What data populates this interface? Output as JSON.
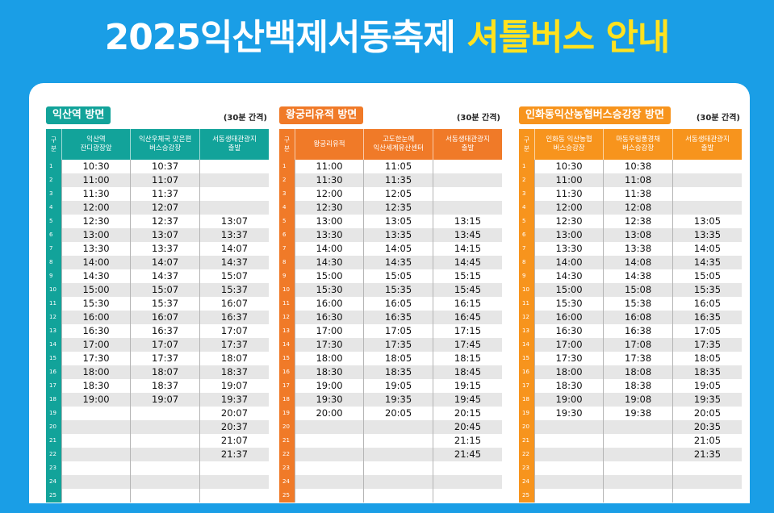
{
  "title": {
    "main": "2025익산백제서동축제 ",
    "highlight": "셔틀버스 안내"
  },
  "colors": {
    "background": "#1a9ee6",
    "highlight": "#ffe21f"
  },
  "sections": [
    {
      "name": "익산역 방면",
      "interval": "(30분 간격)",
      "color": "#12a39a",
      "headers": [
        "구\n분",
        "익산역\n잔디광장앞",
        "익산우체국 맞은편\n버스승강장",
        "서동생태관광지\n출발"
      ],
      "rows": [
        [
          "1",
          "10:30",
          "10:37",
          ""
        ],
        [
          "2",
          "11:00",
          "11:07",
          ""
        ],
        [
          "3",
          "11:30",
          "11:37",
          ""
        ],
        [
          "4",
          "12:00",
          "12:07",
          ""
        ],
        [
          "5",
          "12:30",
          "12:37",
          "13:07"
        ],
        [
          "6",
          "13:00",
          "13:07",
          "13:37"
        ],
        [
          "7",
          "13:30",
          "13:37",
          "14:07"
        ],
        [
          "8",
          "14:00",
          "14:07",
          "14:37"
        ],
        [
          "9",
          "14:30",
          "14:37",
          "15:07"
        ],
        [
          "10",
          "15:00",
          "15:07",
          "15:37"
        ],
        [
          "11",
          "15:30",
          "15:37",
          "16:07"
        ],
        [
          "12",
          "16:00",
          "16:07",
          "16:37"
        ],
        [
          "13",
          "16:30",
          "16:37",
          "17:07"
        ],
        [
          "14",
          "17:00",
          "17:07",
          "17:37"
        ],
        [
          "15",
          "17:30",
          "17:37",
          "18:07"
        ],
        [
          "16",
          "18:00",
          "18:07",
          "18:37"
        ],
        [
          "17",
          "18:30",
          "18:37",
          "19:07"
        ],
        [
          "18",
          "19:00",
          "19:07",
          "19:37"
        ],
        [
          "19",
          "",
          "",
          "20:07"
        ],
        [
          "20",
          "",
          "",
          "20:37"
        ],
        [
          "21",
          "",
          "",
          "21:07"
        ],
        [
          "22",
          "",
          "",
          "21:37"
        ],
        [
          "23",
          "",
          "",
          ""
        ],
        [
          "24",
          "",
          "",
          ""
        ],
        [
          "25",
          "",
          "",
          ""
        ]
      ]
    },
    {
      "name": "왕궁리유적 방면",
      "interval": "(30분 간격)",
      "color": "#f07a28",
      "headers": [
        "구\n분",
        "왕궁리유적",
        "고도한눈에\n익산세계유산센터",
        "서동생태관광지\n출발"
      ],
      "rows": [
        [
          "1",
          "11:00",
          "11:05",
          ""
        ],
        [
          "2",
          "11:30",
          "11:35",
          ""
        ],
        [
          "3",
          "12:00",
          "12:05",
          ""
        ],
        [
          "4",
          "12:30",
          "12:35",
          ""
        ],
        [
          "5",
          "13:00",
          "13:05",
          "13:15"
        ],
        [
          "6",
          "13:30",
          "13:35",
          "13:45"
        ],
        [
          "7",
          "14:00",
          "14:05",
          "14:15"
        ],
        [
          "8",
          "14:30",
          "14:35",
          "14:45"
        ],
        [
          "9",
          "15:00",
          "15:05",
          "15:15"
        ],
        [
          "10",
          "15:30",
          "15:35",
          "15:45"
        ],
        [
          "11",
          "16:00",
          "16:05",
          "16:15"
        ],
        [
          "12",
          "16:30",
          "16:35",
          "16:45"
        ],
        [
          "13",
          "17:00",
          "17:05",
          "17:15"
        ],
        [
          "14",
          "17:30",
          "17:35",
          "17:45"
        ],
        [
          "15",
          "18:00",
          "18:05",
          "18:15"
        ],
        [
          "16",
          "18:30",
          "18:35",
          "18:45"
        ],
        [
          "17",
          "19:00",
          "19:05",
          "19:15"
        ],
        [
          "18",
          "19:30",
          "19:35",
          "19:45"
        ],
        [
          "19",
          "20:00",
          "20:05",
          "20:15"
        ],
        [
          "20",
          "",
          "",
          "20:45"
        ],
        [
          "21",
          "",
          "",
          "21:15"
        ],
        [
          "22",
          "",
          "",
          "21:45"
        ],
        [
          "23",
          "",
          "",
          ""
        ],
        [
          "24",
          "",
          "",
          ""
        ],
        [
          "25",
          "",
          "",
          ""
        ]
      ]
    },
    {
      "name": "인화동익산농협버스승강장 방면",
      "interval": "(30분 간격)",
      "color": "#f7941d",
      "headers": [
        "구\n분",
        "인화동 익산농협\n버스승강장",
        "마동우림풍경채\n버스승강장",
        "서동생태관광지\n출발"
      ],
      "rows": [
        [
          "1",
          "10:30",
          "10:38",
          ""
        ],
        [
          "2",
          "11:00",
          "11:08",
          ""
        ],
        [
          "3",
          "11:30",
          "11:38",
          ""
        ],
        [
          "4",
          "12:00",
          "12:08",
          ""
        ],
        [
          "5",
          "12:30",
          "12:38",
          "13:05"
        ],
        [
          "6",
          "13:00",
          "13:08",
          "13:35"
        ],
        [
          "7",
          "13:30",
          "13:38",
          "14:05"
        ],
        [
          "8",
          "14:00",
          "14:08",
          "14:35"
        ],
        [
          "9",
          "14:30",
          "14:38",
          "15:05"
        ],
        [
          "10",
          "15:00",
          "15:08",
          "15:35"
        ],
        [
          "11",
          "15:30",
          "15:38",
          "16:05"
        ],
        [
          "12",
          "16:00",
          "16:08",
          "16:35"
        ],
        [
          "13",
          "16:30",
          "16:38",
          "17:05"
        ],
        [
          "14",
          "17:00",
          "17:08",
          "17:35"
        ],
        [
          "15",
          "17:30",
          "17:38",
          "18:05"
        ],
        [
          "16",
          "18:00",
          "18:08",
          "18:35"
        ],
        [
          "17",
          "18:30",
          "18:38",
          "19:05"
        ],
        [
          "18",
          "19:00",
          "19:08",
          "19:35"
        ],
        [
          "19",
          "19:30",
          "19:38",
          "20:05"
        ],
        [
          "20",
          "",
          "",
          "20:35"
        ],
        [
          "21",
          "",
          "",
          "21:05"
        ],
        [
          "22",
          "",
          "",
          "21:35"
        ],
        [
          "23",
          "",
          "",
          ""
        ],
        [
          "24",
          "",
          "",
          ""
        ],
        [
          "25",
          "",
          "",
          ""
        ]
      ]
    }
  ]
}
